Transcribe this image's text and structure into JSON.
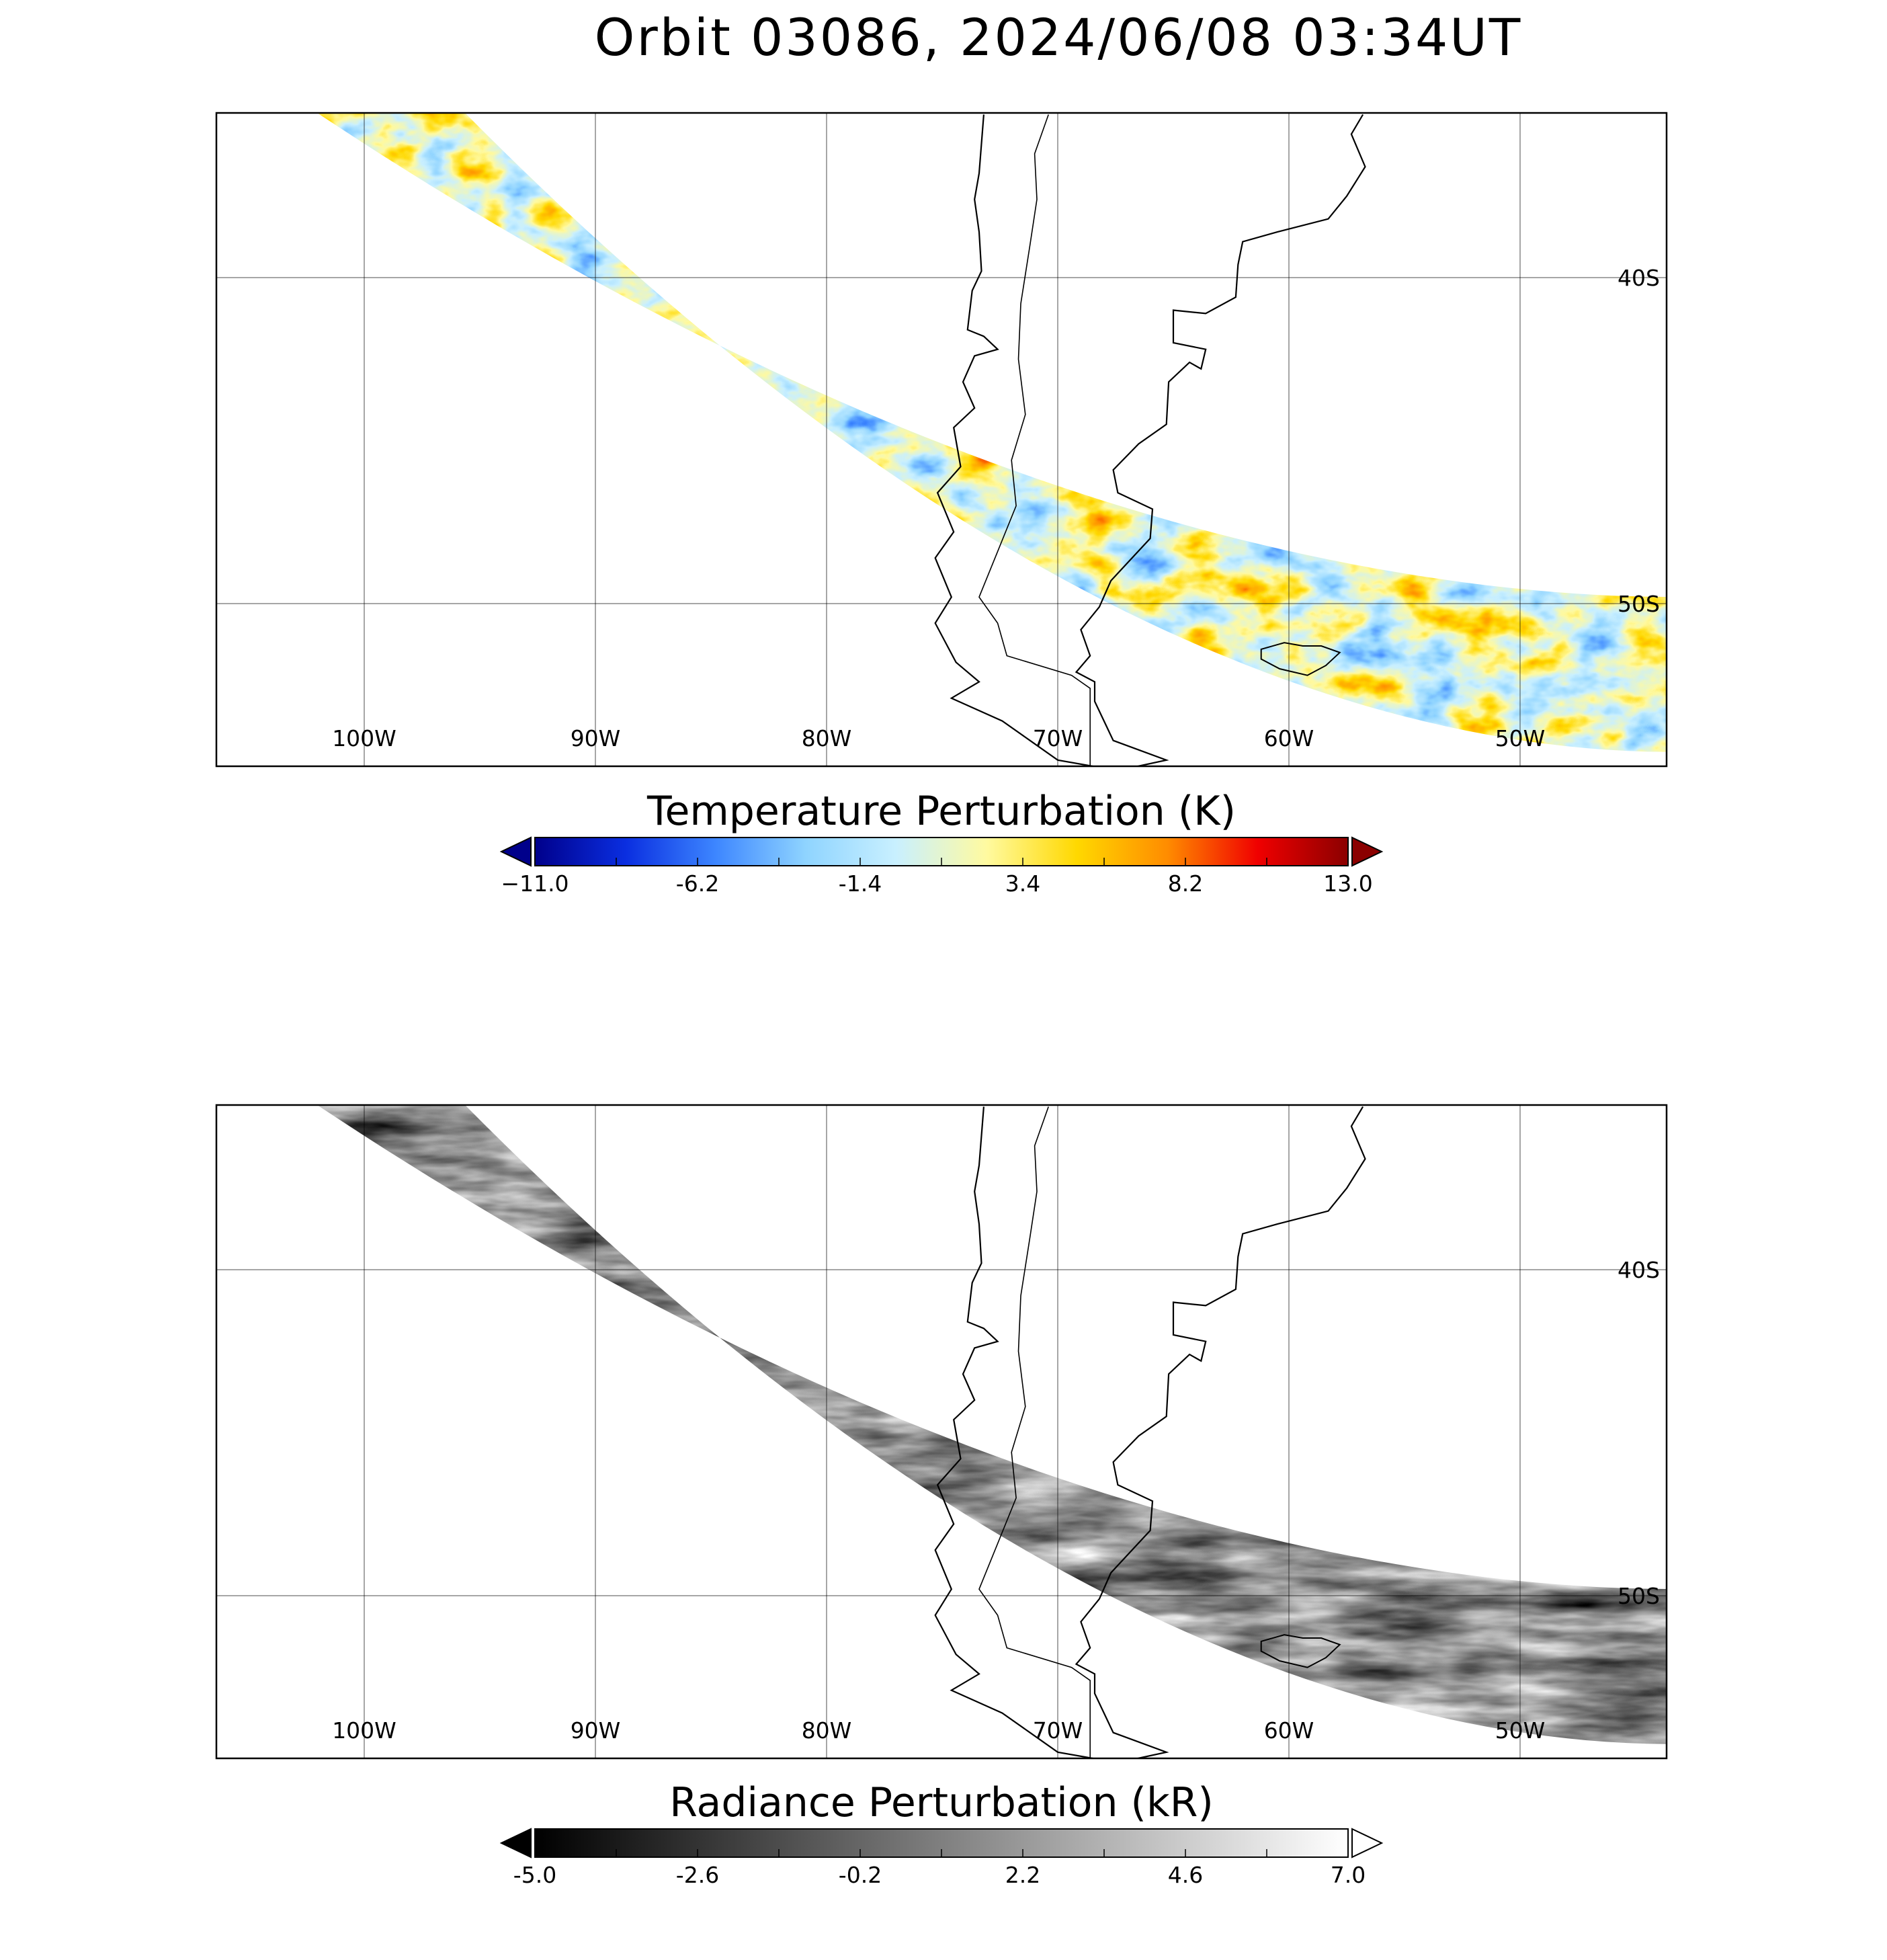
{
  "title": "Orbit 03086, 2024/06/08 03:34UT",
  "panels": [
    {
      "id": "temperature",
      "colorbar_title": "Temperature Perturbation (K)",
      "colorbar_ticks": [
        "−11.0",
        "-6.2",
        "-1.4",
        "3.4",
        "8.2",
        "13.0"
      ],
      "colorbar_range": [
        -11.0,
        13.0
      ],
      "colormap": [
        "#00008b",
        "#0a2ee0",
        "#3d86ff",
        "#8fd4ff",
        "#c9f0ff",
        "#fffaa0",
        "#ffd800",
        "#ff8c00",
        "#f00000",
        "#8b0000"
      ],
      "lon_labels": [
        "100W",
        "90W",
        "80W",
        "70W",
        "60W",
        "50W"
      ],
      "lat_labels": [
        "40S",
        "50S"
      ]
    },
    {
      "id": "radiance",
      "colorbar_title": "Radiance Perturbation (kR)",
      "colorbar_ticks": [
        "-5.0",
        "-2.6",
        "-0.2",
        "2.2",
        "4.6",
        "7.0"
      ],
      "colorbar_range": [
        -5.0,
        7.0
      ],
      "colormap": [
        "#000000",
        "#ffffff"
      ],
      "lon_labels": [
        "100W",
        "90W",
        "80W",
        "70W",
        "60W",
        "50W"
      ],
      "lat_labels": [
        "40S",
        "50S"
      ]
    }
  ],
  "map_extent": {
    "lon_min": -106.5,
    "lon_max": -43.5,
    "lat_min": -55,
    "lat_max": -35
  }
}
